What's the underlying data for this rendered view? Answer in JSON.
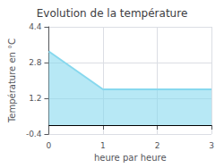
{
  "chart_data": {
    "type": "area",
    "title": "Evolution de la température",
    "xlabel": "heure par heure",
    "ylabel": "Température en °C",
    "x": [
      0,
      1,
      3
    ],
    "values": [
      3.3,
      1.6,
      1.6
    ],
    "baseline": 0,
    "color": "#87d8ee",
    "xlim": [
      0,
      3
    ],
    "ylim": [
      -0.4,
      4.4
    ],
    "xticks": [
      0,
      1,
      2,
      3
    ],
    "yticks": [
      -0.4,
      1.2,
      2.8,
      4.4
    ],
    "grid": true
  }
}
